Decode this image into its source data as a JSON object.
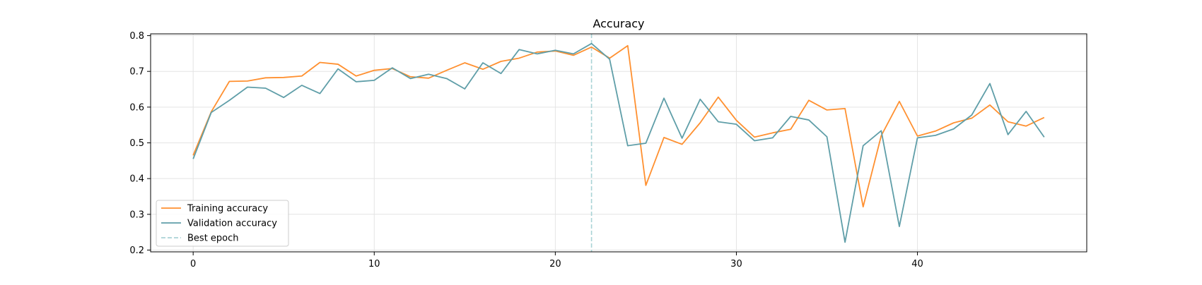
{
  "chart_data": {
    "type": "line",
    "title": "Accuracy",
    "xlabel": "",
    "ylabel": "",
    "xlim": [
      -2.35,
      49.35
    ],
    "ylim": [
      0.195,
      0.805
    ],
    "xticks": [
      0,
      10,
      20,
      30,
      40
    ],
    "yticks": [
      0.2,
      0.3,
      0.4,
      0.5,
      0.6,
      0.7,
      0.8
    ],
    "grid": true,
    "legend_position": "lower-left",
    "x": [
      0,
      1,
      2,
      3,
      4,
      5,
      6,
      7,
      8,
      9,
      10,
      11,
      12,
      13,
      14,
      15,
      16,
      17,
      18,
      19,
      20,
      21,
      22,
      23,
      24,
      25,
      26,
      27,
      28,
      29,
      30,
      31,
      32,
      33,
      34,
      35,
      36,
      37,
      38,
      39,
      40,
      41,
      42,
      43,
      44,
      45,
      46,
      47
    ],
    "series": [
      {
        "name": "Training accuracy",
        "color": "#ff9030",
        "values": [
          0.465,
          0.587,
          0.672,
          0.673,
          0.682,
          0.683,
          0.687,
          0.725,
          0.72,
          0.687,
          0.703,
          0.708,
          0.685,
          0.681,
          0.703,
          0.724,
          0.706,
          0.728,
          0.737,
          0.754,
          0.757,
          0.745,
          0.768,
          0.737,
          0.772,
          0.381,
          0.515,
          0.496,
          0.556,
          0.628,
          0.563,
          0.516,
          0.528,
          0.538,
          0.619,
          0.592,
          0.596,
          0.321,
          0.52,
          0.616,
          0.519,
          0.533,
          0.556,
          0.569,
          0.606,
          0.559,
          0.547,
          0.571
        ]
      },
      {
        "name": "Validation accuracy",
        "color": "#5f9ea8",
        "values": [
          0.455,
          0.585,
          0.619,
          0.656,
          0.653,
          0.627,
          0.661,
          0.638,
          0.707,
          0.671,
          0.675,
          0.71,
          0.68,
          0.692,
          0.68,
          0.651,
          0.724,
          0.694,
          0.761,
          0.749,
          0.759,
          0.749,
          0.778,
          0.734,
          0.492,
          0.499,
          0.625,
          0.513,
          0.622,
          0.559,
          0.552,
          0.506,
          0.514,
          0.574,
          0.564,
          0.517,
          0.222,
          0.492,
          0.534,
          0.266,
          0.514,
          0.521,
          0.539,
          0.578,
          0.666,
          0.523,
          0.588,
          0.516
        ]
      }
    ],
    "best_epoch": {
      "label": "Best epoch",
      "x": 22,
      "color": "#a9d3d6"
    }
  }
}
